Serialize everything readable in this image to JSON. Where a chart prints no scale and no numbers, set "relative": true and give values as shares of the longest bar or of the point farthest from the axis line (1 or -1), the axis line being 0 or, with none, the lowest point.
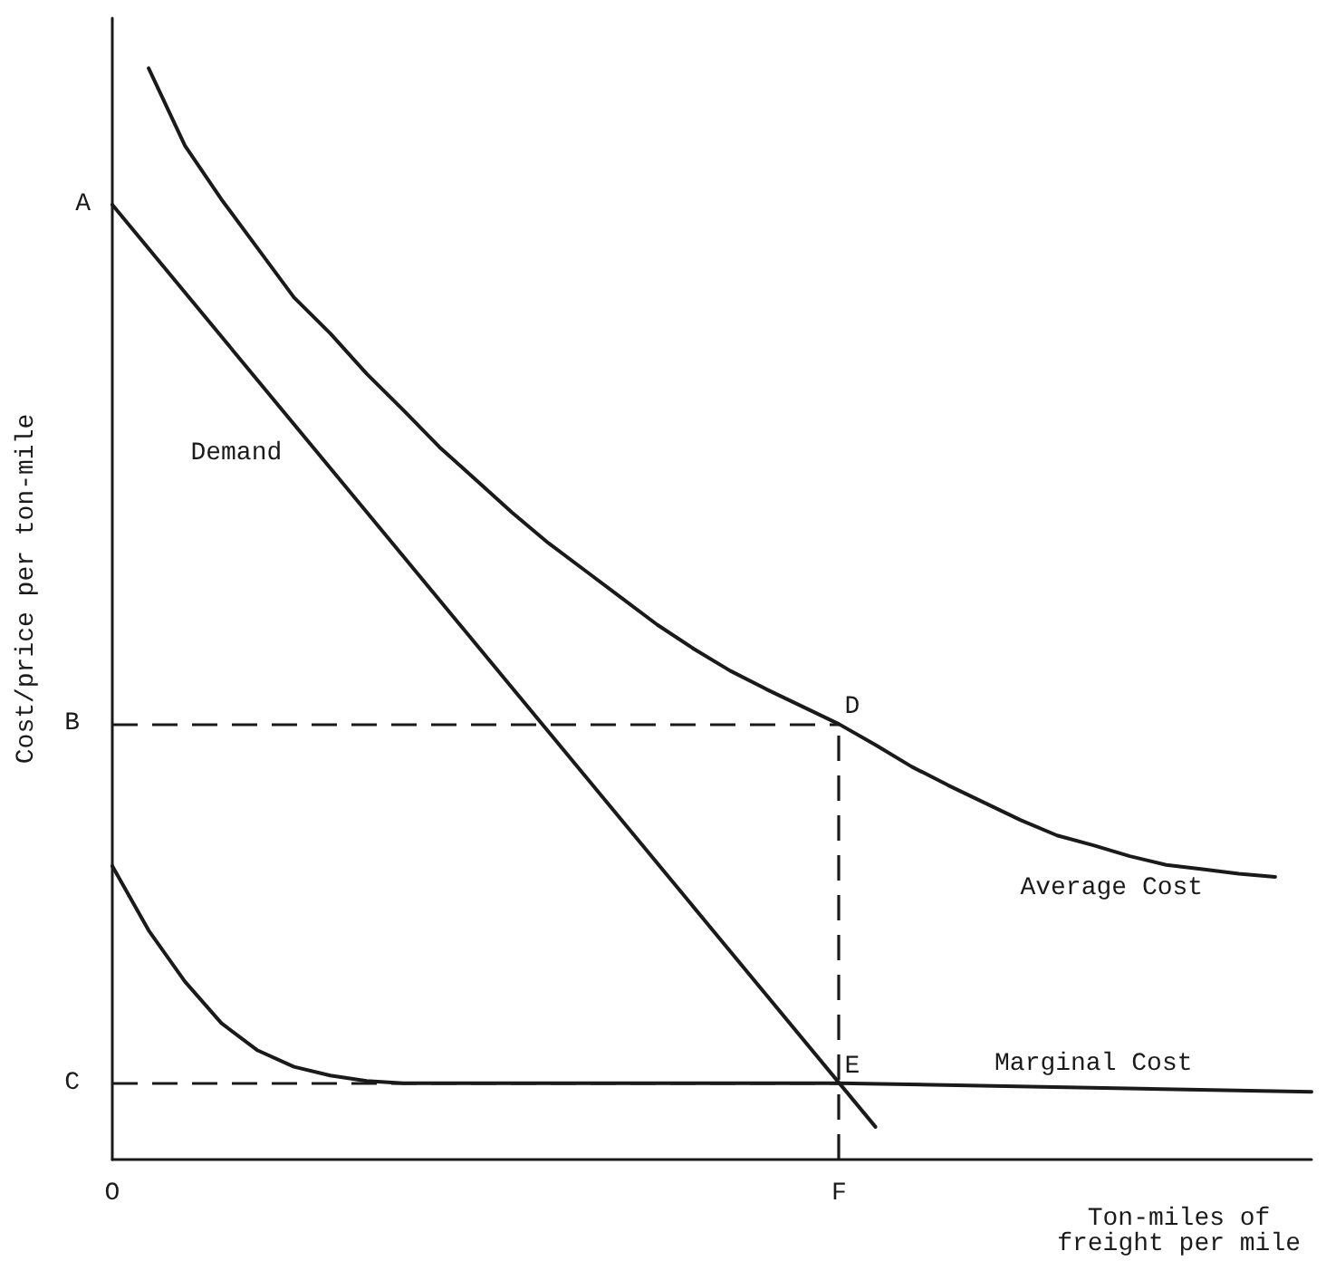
{
  "chart_data": {
    "type": "line",
    "relative": true,
    "xlabel": "Ton-miles of\nfreight per mile",
    "ylabel": "Cost/price per ton-mile",
    "categories": [
      "O",
      null,
      null,
      null,
      null,
      null,
      null,
      null,
      null,
      null,
      null,
      null,
      null,
      null,
      null,
      null,
      null,
      null,
      null,
      null,
      "F",
      null,
      null,
      null,
      null,
      null,
      null,
      null,
      null,
      null,
      null,
      null,
      null,
      null
    ],
    "marker": "none",
    "grid": false,
    "legend": false,
    "line_style": "solid",
    "series": [
      {
        "name": "Demand",
        "color": "#1a1a1a",
        "values": [
          0.875,
          null,
          null,
          null,
          null,
          null,
          null,
          null,
          null,
          null,
          null,
          null,
          null,
          null,
          null,
          null,
          null,
          null,
          null,
          null,
          null,
          0.03,
          null,
          null,
          null,
          null,
          null,
          null,
          null,
          null,
          null,
          null,
          null,
          null
        ]
      },
      {
        "name": "Average Cost",
        "color": "#1a1a1a",
        "values": [
          null,
          1.0,
          0.929,
          0.88,
          0.835,
          0.79,
          0.757,
          0.72,
          0.687,
          0.653,
          0.623,
          0.593,
          0.565,
          0.54,
          0.515,
          0.49,
          0.468,
          0.448,
          0.431,
          0.415,
          0.399,
          0.38,
          0.36,
          0.343,
          0.327,
          0.311,
          0.297,
          0.288,
          0.278,
          0.27,
          0.266,
          0.262,
          0.259,
          null
        ]
      },
      {
        "name": "Marginal Cost",
        "color": "#1a1a1a",
        "values": [
          0.269,
          0.21,
          0.163,
          0.125,
          0.1,
          0.085,
          0.077,
          0.072,
          0.07,
          null,
          null,
          null,
          null,
          null,
          null,
          null,
          null,
          null,
          null,
          null,
          0.07,
          null,
          null,
          null,
          null,
          null,
          null,
          null,
          null,
          null,
          null,
          null,
          null,
          0.062
        ]
      }
    ],
    "ref_lines": [
      {
        "axis": "y",
        "value": 0.399,
        "label": "B",
        "line_style": "dashed",
        "color": "#1a1a1a"
      },
      {
        "axis": "y",
        "value": 0.07,
        "label": "C",
        "line_style": "dashed",
        "color": "#1a1a1a"
      },
      {
        "axis": "x",
        "value": "F",
        "line_style": "dashed",
        "color": "#1a1a1a"
      }
    ],
    "annotations": [
      {
        "text": "A",
        "x": "O",
        "y": 0.875
      },
      {
        "text": "D",
        "x": "F",
        "y": 0.399
      },
      {
        "text": "E",
        "x": "F",
        "y": 0.07
      }
    ]
  }
}
